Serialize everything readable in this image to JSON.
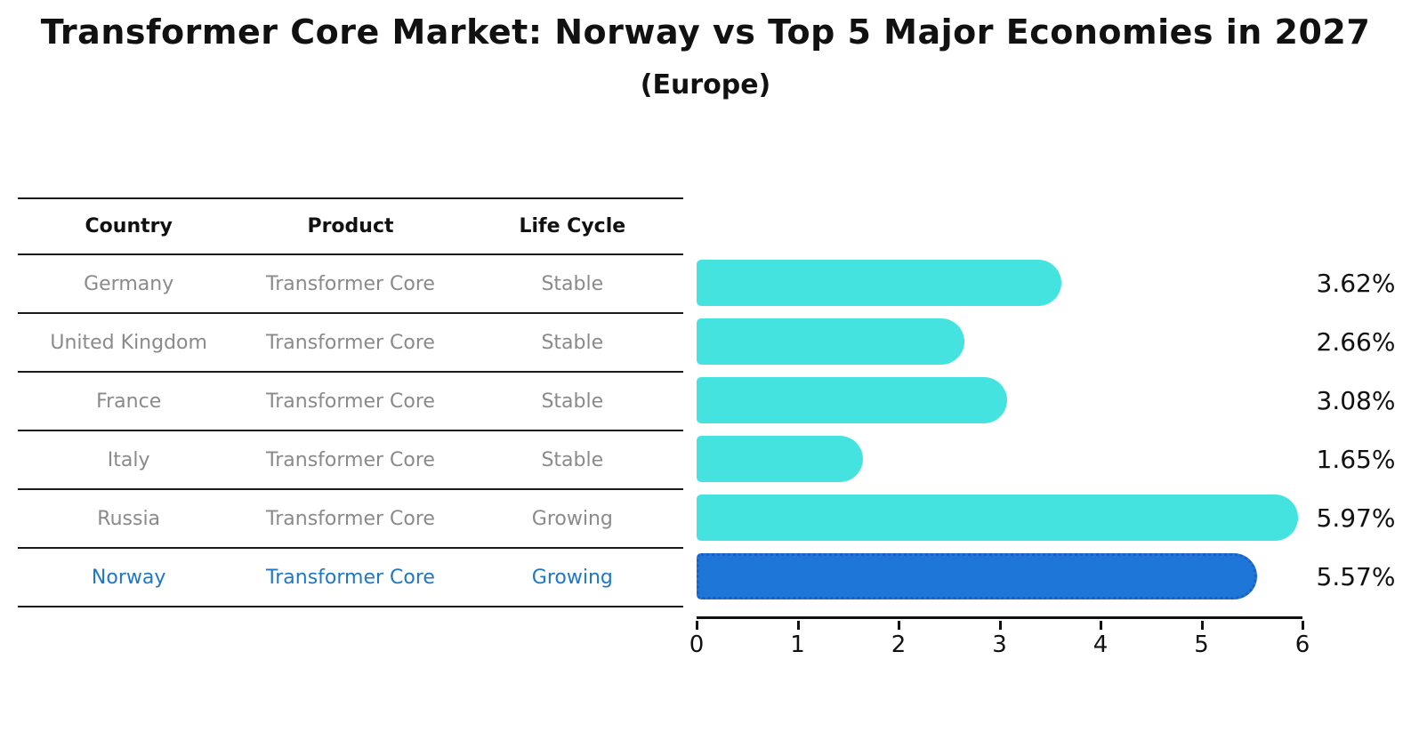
{
  "page": {
    "title": "Transformer Core Market: Norway vs Top 5 Major Economies in 2027",
    "subtitle": "(Europe)"
  },
  "table": {
    "headers": [
      "Country",
      "Product",
      "Life Cycle"
    ],
    "rows": [
      {
        "country": "Germany",
        "product": "Transformer Core",
        "life_cycle": "Stable",
        "highlighted": false
      },
      {
        "country": "United Kingdom",
        "product": "Transformer Core",
        "life_cycle": "Stable",
        "highlighted": false
      },
      {
        "country": "France",
        "product": "Transformer Core",
        "life_cycle": "Stable",
        "highlighted": false
      },
      {
        "country": "Italy",
        "product": "Transformer Core",
        "life_cycle": "Stable",
        "highlighted": false
      },
      {
        "country": "Russia",
        "product": "Transformer Core",
        "life_cycle": "Growing",
        "highlighted": false
      },
      {
        "country": "Norway",
        "product": "Transformer Core",
        "life_cycle": "Growing",
        "highlighted": true
      }
    ]
  },
  "chart_data": {
    "type": "bar",
    "orientation": "horizontal",
    "title": "Transformer Core Market: Norway vs Top 5 Major Economies in 2027",
    "subtitle": "(Europe)",
    "categories": [
      "Germany",
      "United Kingdom",
      "France",
      "Italy",
      "Russia",
      "Norway"
    ],
    "values": [
      3.62,
      2.66,
      3.08,
      1.65,
      5.97,
      5.57
    ],
    "value_labels": [
      "3.62%",
      "2.66%",
      "3.08%",
      "1.65%",
      "5.97%",
      "5.57%"
    ],
    "xlim": [
      0,
      6
    ],
    "x_ticks": [
      0,
      1,
      2,
      3,
      4,
      5,
      6
    ],
    "highlight_index": 5,
    "grid": false,
    "legend": "none",
    "colors": {
      "bar": "#45E3E0",
      "highlight_bar": "#1D76D8",
      "highlight_border": "#1A5FC8",
      "highlight_text": "#1F77C8",
      "row_text": "#8A8A8A",
      "axis": "#111111"
    }
  }
}
